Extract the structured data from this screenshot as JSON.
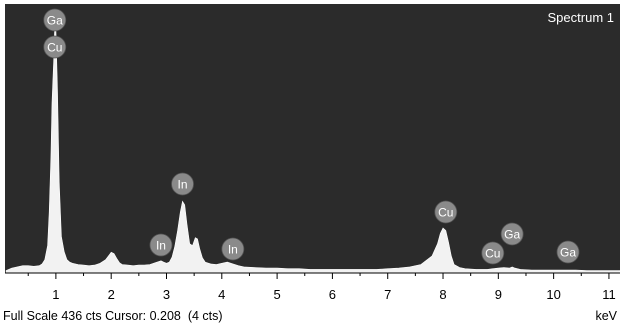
{
  "status_bar": {
    "full_scale": "Full Scale 436 cts",
    "cursor": "Cursor: 0.208  (4 cts)"
  },
  "x_unit": "keV",
  "colors": {
    "plot_background": "#2b2b2b",
    "spectrum_fill": "#f2f2f2",
    "marker_fill": "#8a8a8a",
    "marker_text": "#ffffff",
    "axis_text": "#000000"
  },
  "chart_data": {
    "type": "area",
    "title": "Spectrum 1",
    "xlabel": "keV",
    "ylabel": "",
    "xlim": [
      0.08,
      11.2
    ],
    "ylim": [
      0,
      436
    ],
    "x_ticks": [
      1,
      2,
      3,
      4,
      5,
      6,
      7,
      8,
      9,
      10,
      11
    ],
    "grid": false,
    "series": [
      {
        "x": [
          0.1,
          0.2,
          0.3,
          0.4,
          0.5,
          0.6,
          0.7,
          0.75,
          0.8,
          0.85,
          0.88,
          0.91,
          0.93,
          0.96,
          0.98,
          1.0,
          1.03,
          1.06,
          1.1,
          1.15,
          1.2,
          1.25,
          1.3,
          1.4,
          1.5,
          1.6,
          1.7,
          1.8,
          1.9,
          2.0,
          2.05,
          2.1,
          2.15,
          2.2,
          2.3,
          2.4,
          2.5,
          2.6,
          2.7,
          2.8,
          2.9,
          2.95,
          3.0,
          3.05,
          3.1,
          3.15,
          3.2,
          3.25,
          3.29,
          3.33,
          3.37,
          3.42,
          3.47,
          3.52,
          3.56,
          3.6,
          3.65,
          3.7,
          3.8,
          3.9,
          4.0,
          4.1,
          4.2,
          4.3,
          4.4,
          4.6,
          4.8,
          5.0,
          5.2,
          5.4,
          5.6,
          5.8,
          6.0,
          6.2,
          6.4,
          6.6,
          6.8,
          7.0,
          7.2,
          7.4,
          7.6,
          7.8,
          7.9,
          7.95,
          8.0,
          8.05,
          8.1,
          8.15,
          8.2,
          8.3,
          8.4,
          8.6,
          8.8,
          8.9,
          9.0,
          9.1,
          9.2,
          9.25,
          9.3,
          9.4,
          9.6,
          9.8,
          10.0,
          10.2,
          10.3,
          10.4,
          10.6,
          10.8,
          11.0,
          11.2
        ],
        "y": [
          4,
          8,
          10,
          12,
          12,
          11,
          12,
          15,
          22,
          45,
          100,
          190,
          280,
          350,
          410,
          400,
          300,
          150,
          60,
          35,
          22,
          18,
          16,
          14,
          13,
          12,
          13,
          16,
          22,
          34,
          32,
          24,
          17,
          14,
          13,
          12,
          13,
          13,
          14,
          17,
          20,
          18,
          16,
          18,
          26,
          44,
          70,
          100,
          118,
          112,
          80,
          48,
          45,
          58,
          56,
          40,
          25,
          18,
          15,
          14,
          16,
          18,
          15,
          12,
          10,
          9,
          8,
          8,
          7,
          7,
          6,
          6,
          6,
          6,
          6,
          6,
          6,
          7,
          8,
          10,
          14,
          28,
          48,
          65,
          74,
          70,
          50,
          28,
          14,
          9,
          7,
          6,
          6,
          7,
          8,
          9,
          8,
          10,
          8,
          6,
          5,
          5,
          5,
          5,
          5,
          5,
          4,
          4,
          4,
          4
        ]
      }
    ],
    "peak_labels": [
      {
        "text": "Ga",
        "x": 0.98
      },
      {
        "text": "Cu",
        "x": 0.98
      },
      {
        "text": "In",
        "x": 3.29
      },
      {
        "text": "In",
        "x": 2.9
      },
      {
        "text": "In",
        "x": 4.2
      },
      {
        "text": "Cu",
        "x": 8.05
      },
      {
        "text": "Cu",
        "x": 8.9
      },
      {
        "text": "Ga",
        "x": 9.25
      },
      {
        "text": "Ga",
        "x": 10.26
      }
    ]
  }
}
